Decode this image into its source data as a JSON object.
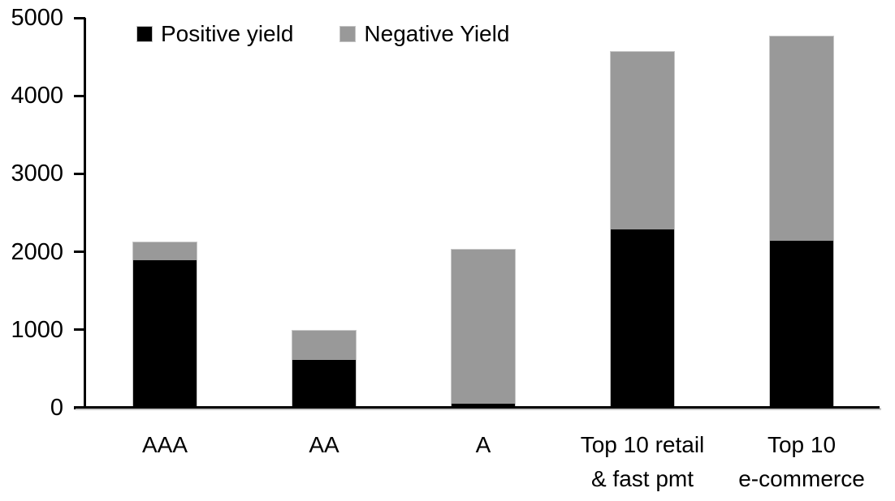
{
  "chart_data": {
    "type": "bar",
    "stacked": true,
    "title": "",
    "xlabel": "",
    "ylabel": "",
    "categories": [
      [
        "AAA"
      ],
      [
        "AA"
      ],
      [
        "A"
      ],
      [
        "Top 10 retail",
        "& fast pmt"
      ],
      [
        "Top 10",
        "e-commerce"
      ]
    ],
    "series": [
      {
        "name": "Positive yield",
        "color": "#000000",
        "values": [
          1900,
          625,
          50,
          2290,
          2150
        ]
      },
      {
        "name": "Negative Yield",
        "color": "#999999",
        "values": [
          230,
          375,
          1990,
          2280,
          2620
        ]
      }
    ],
    "stack_totals": [
      2130,
      1000,
      2040,
      4570,
      4770
    ],
    "ylim": [
      0,
      5000
    ],
    "ytick_values": [
      0,
      1000,
      2000,
      3000,
      4000,
      5000
    ],
    "ytick_labels": [
      "0",
      "1000",
      "2000",
      "3000",
      "4000",
      "5000"
    ],
    "grid": false,
    "legend_position": "top-left",
    "axis_color": "#000000",
    "bar_border_color": "#c8c8c8"
  }
}
